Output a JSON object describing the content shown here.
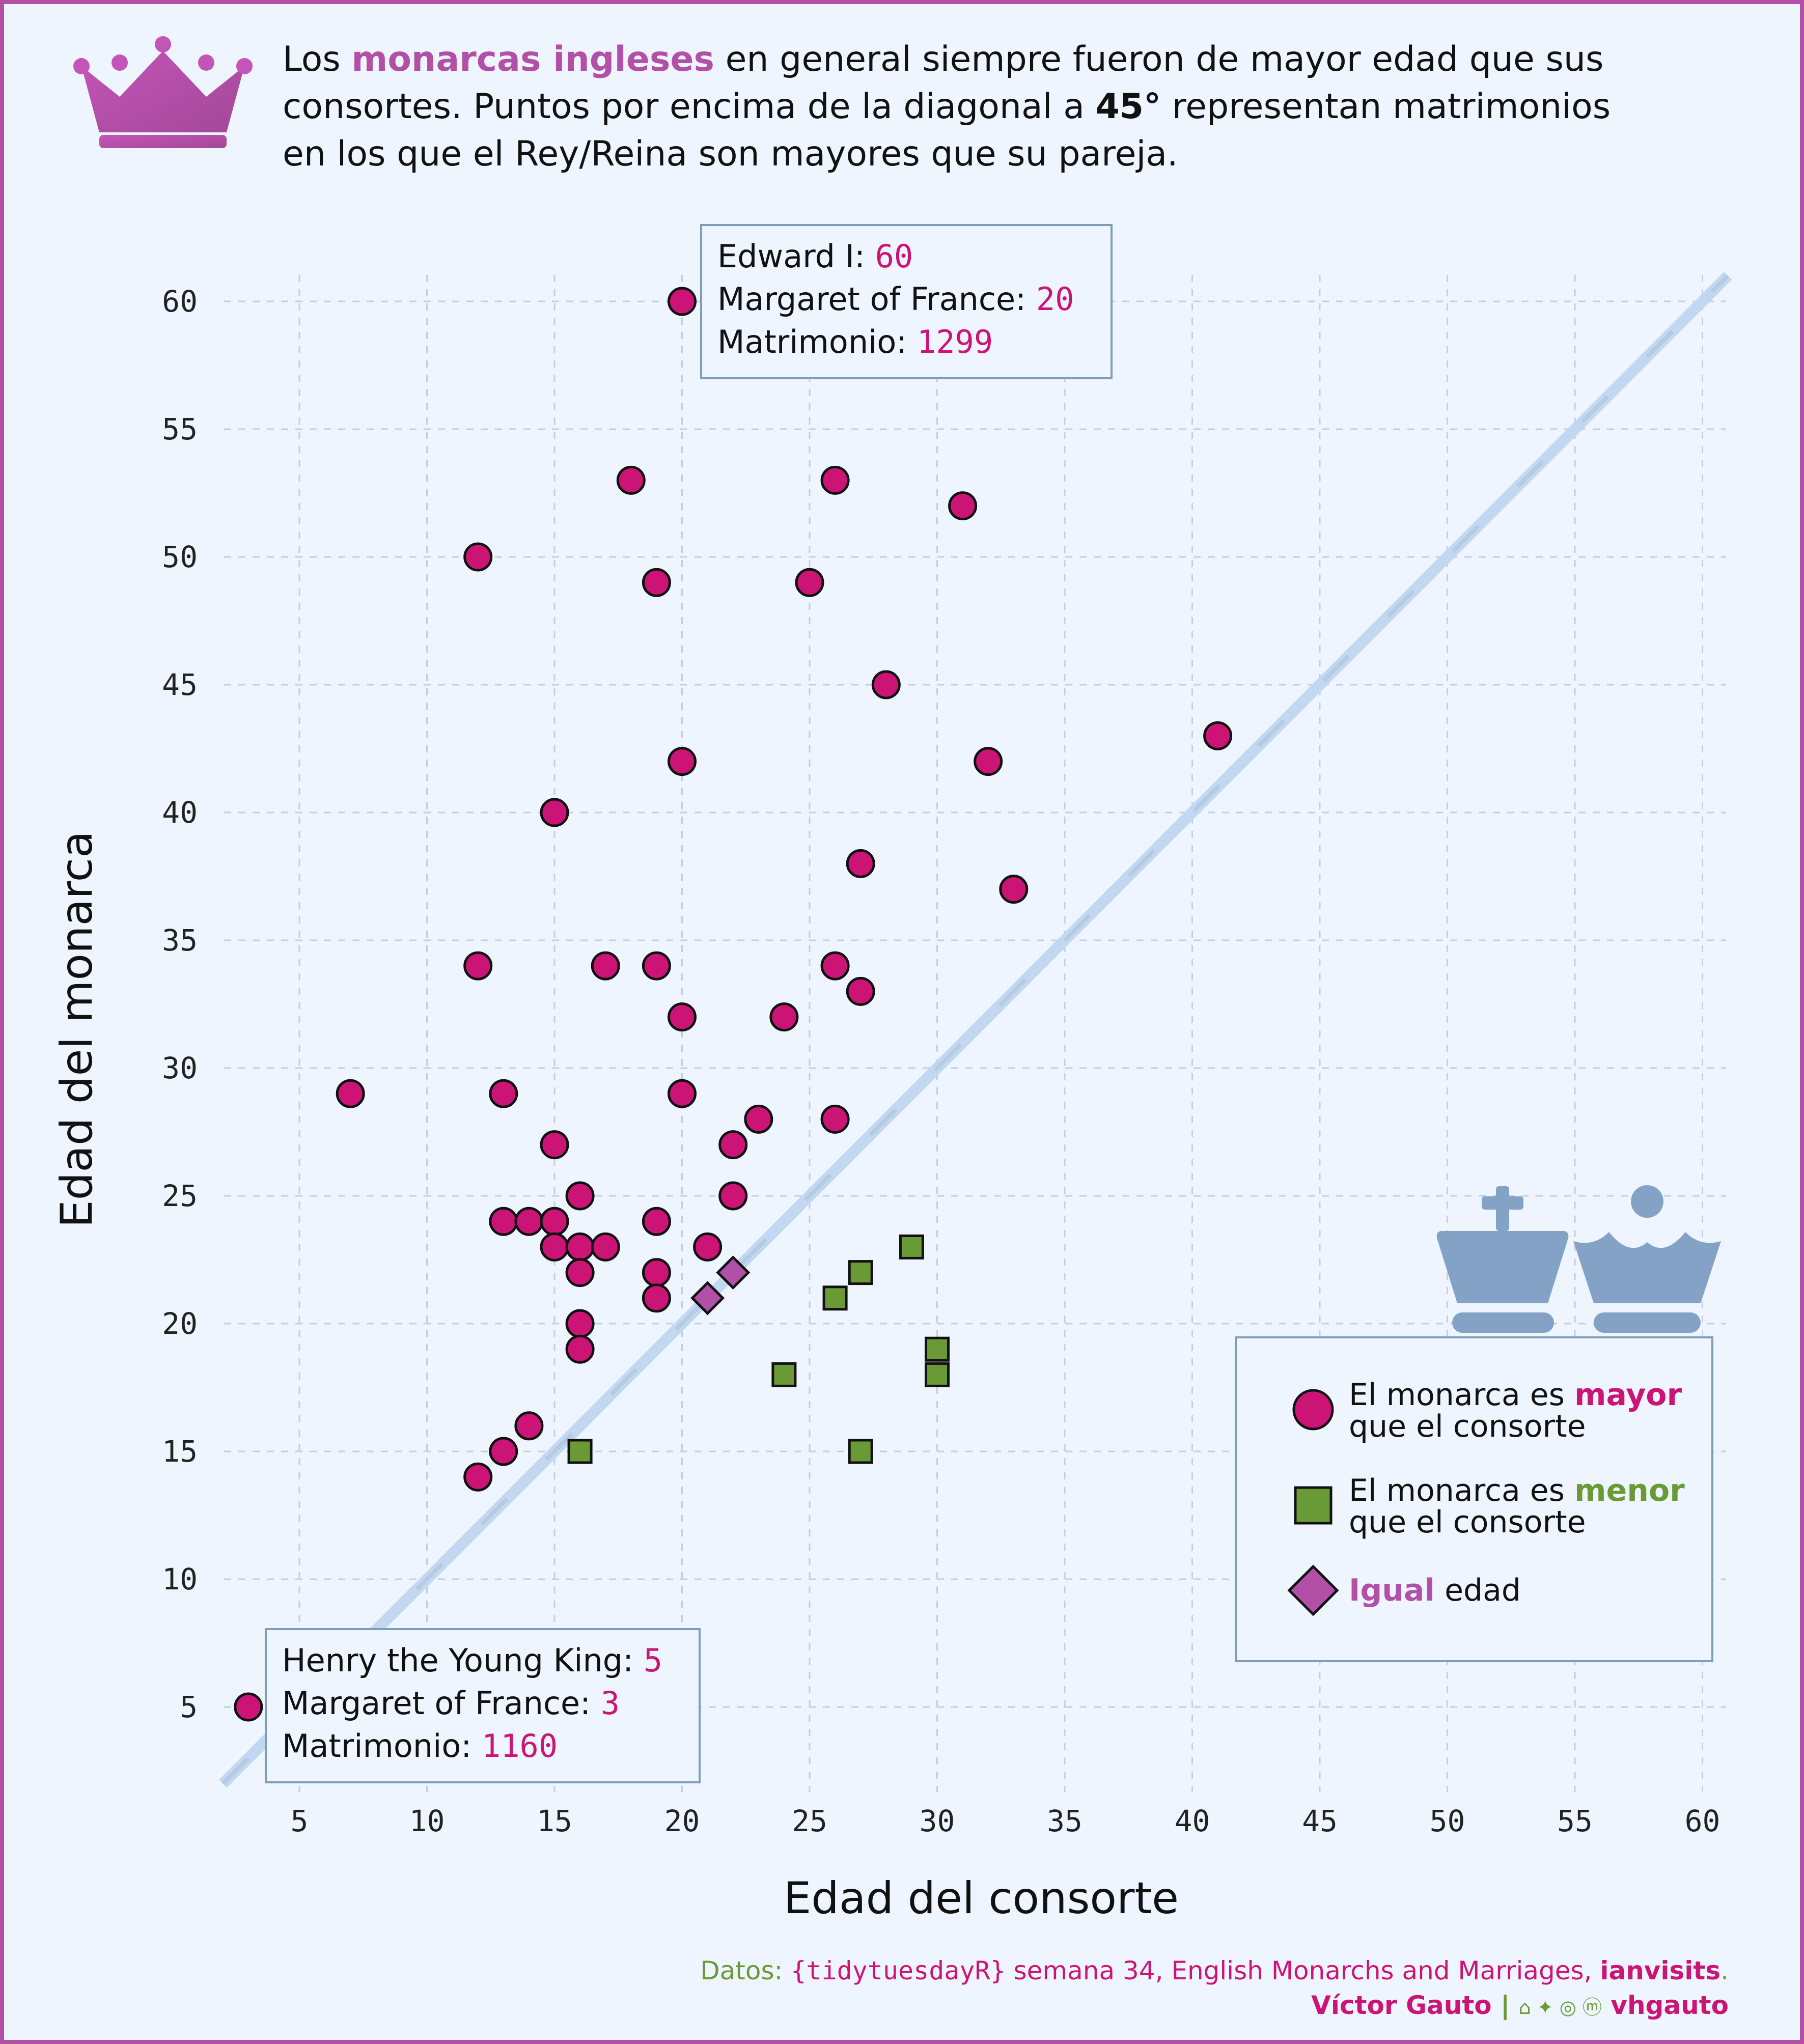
{
  "headline": {
    "t1": "Los ",
    "highlight": "monarcas ingleses",
    "t2": " en general siempre fueron de mayor edad que sus consortes. Puntos por encima de la diagonal a ",
    "bold": "45°",
    "t3": " representan matrimonios en los que el Rey/Reina son mayores que su pareja."
  },
  "annotations": {
    "top": {
      "monarch_name": "Edward I: ",
      "monarch_age": "60",
      "consort_name": "Margaret of France: ",
      "consort_age": "20",
      "marriage_label": "Matrimonio: ",
      "year": "1299"
    },
    "bottom": {
      "monarch_name": "Henry the Young King: ",
      "monarch_age": "5",
      "consort_name": "Margaret of France: ",
      "consort_age": "3",
      "marriage_label": "Matrimonio: ",
      "year": "1160"
    }
  },
  "legend": {
    "older_pre": "El monarca es ",
    "older_word": "mayor",
    "older_post": "que el consorte",
    "younger_pre": "El monarca es ",
    "younger_word": "menor",
    "younger_post": "que el consorte",
    "equal_word": "Igual",
    "equal_post": " edad"
  },
  "footer": {
    "data_label": "Datos: ",
    "package": "{tidytuesdayR}",
    "week": " semana 34, English Monarchs and Marriages, ",
    "source": "ianvisits",
    "period": ".",
    "author": "Víctor Gauto",
    "separator": " | ",
    "social_icons": "⌂ ✦ ◎ ⓜ",
    "handle": " vhgauto"
  },
  "colors": {
    "older": "#CC1477",
    "younger": "#6A9A35",
    "equal": "#B24FA6",
    "background": "#EEF5FF",
    "diagonal": "#C2D8F2",
    "chess": "#84A2C5"
  },
  "chart_data": {
    "type": "scatter",
    "xlabel": "Edad del consorte",
    "ylabel": "Edad del monarca",
    "xlim": [
      2,
      61
    ],
    "ylim": [
      2,
      61
    ],
    "xticks": [
      5,
      10,
      15,
      20,
      25,
      30,
      35,
      40,
      45,
      50,
      55,
      60
    ],
    "yticks": [
      5,
      10,
      15,
      20,
      25,
      30,
      35,
      40,
      45,
      50,
      55,
      60
    ],
    "grid": true,
    "reference_line": "y = x",
    "legend_position": "bottom-right",
    "series": [
      {
        "name": "El monarca es mayor que el consorte",
        "marker": "circle",
        "points": [
          [
            20,
            60
          ],
          [
            18,
            53
          ],
          [
            26,
            53
          ],
          [
            31,
            52
          ],
          [
            12,
            50
          ],
          [
            19,
            49
          ],
          [
            25,
            49
          ],
          [
            28,
            45
          ],
          [
            41,
            43
          ],
          [
            20,
            42
          ],
          [
            32,
            42
          ],
          [
            15,
            40
          ],
          [
            27,
            38
          ],
          [
            33,
            37
          ],
          [
            12,
            34
          ],
          [
            17,
            34
          ],
          [
            19,
            34
          ],
          [
            26,
            34
          ],
          [
            27,
            33
          ],
          [
            20,
            32
          ],
          [
            24,
            32
          ],
          [
            7,
            29
          ],
          [
            13,
            29
          ],
          [
            20,
            29
          ],
          [
            23,
            28
          ],
          [
            26,
            28
          ],
          [
            15,
            27
          ],
          [
            22,
            27
          ],
          [
            16,
            25
          ],
          [
            22,
            25
          ],
          [
            13,
            24
          ],
          [
            14,
            24
          ],
          [
            15,
            24
          ],
          [
            19,
            24
          ],
          [
            15,
            23
          ],
          [
            16,
            23
          ],
          [
            17,
            23
          ],
          [
            21,
            23
          ],
          [
            16,
            22
          ],
          [
            19,
            22
          ],
          [
            19,
            21
          ],
          [
            16,
            20
          ],
          [
            16,
            19
          ],
          [
            14,
            16
          ],
          [
            13,
            15
          ],
          [
            12,
            14
          ],
          [
            3,
            5
          ]
        ]
      },
      {
        "name": "El monarca es menor que el consorte",
        "marker": "square",
        "points": [
          [
            29,
            23
          ],
          [
            27,
            22
          ],
          [
            26,
            21
          ],
          [
            30,
            19
          ],
          [
            24,
            18
          ],
          [
            30,
            18
          ],
          [
            16,
            15
          ],
          [
            27,
            15
          ]
        ]
      },
      {
        "name": "Igual edad",
        "marker": "diamond",
        "points": [
          [
            22,
            22
          ],
          [
            21,
            21
          ]
        ]
      }
    ]
  }
}
